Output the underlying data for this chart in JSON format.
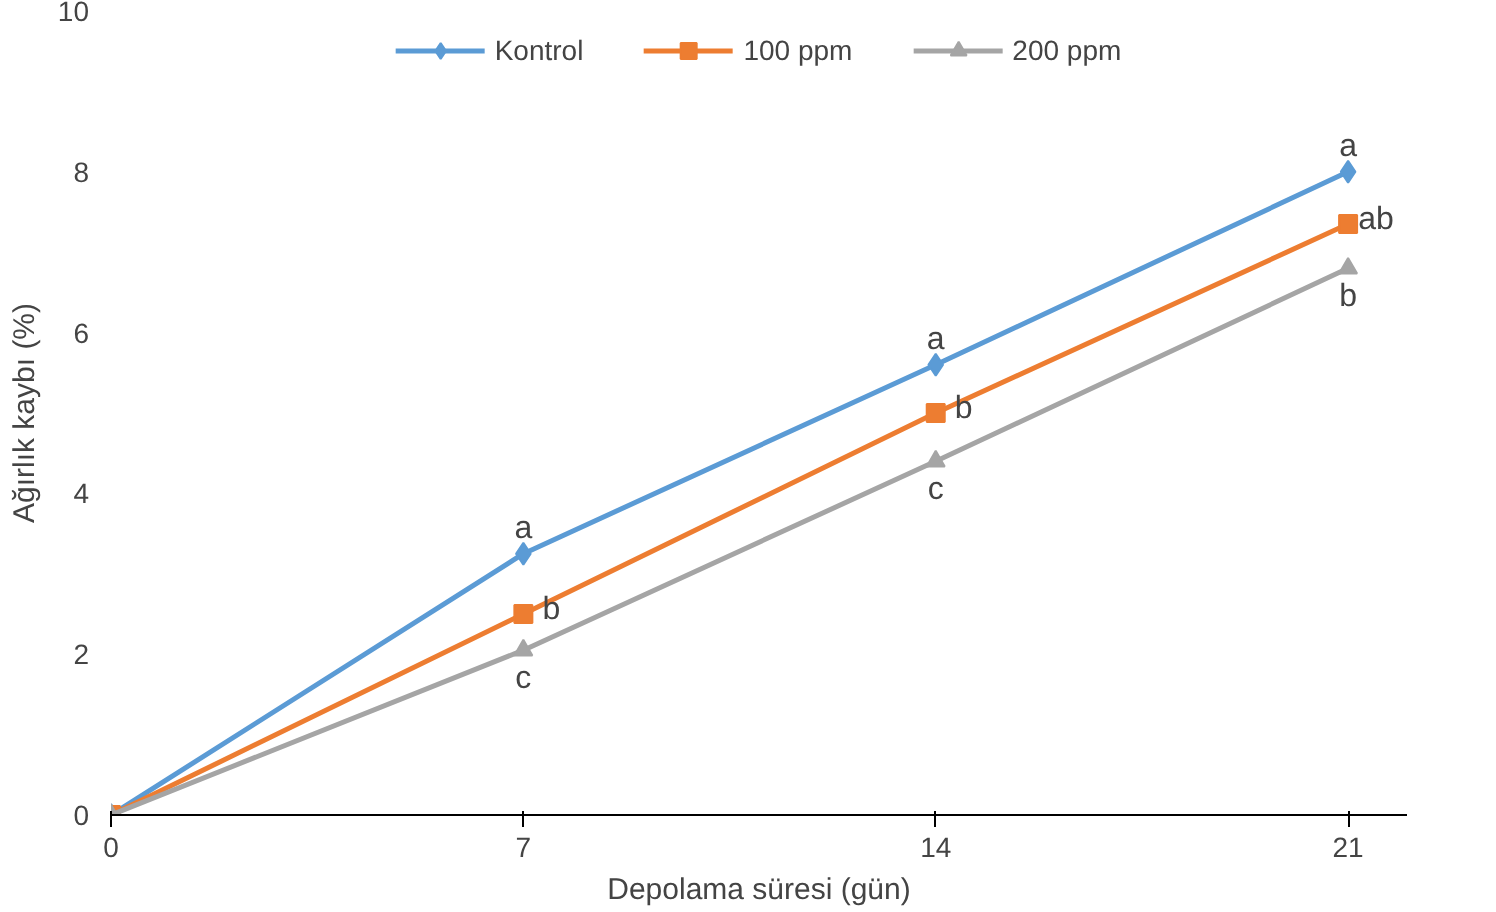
{
  "chart_data": {
    "type": "line",
    "xlabel": "Depolama süresi (gün)",
    "ylabel": "Ağırlık kaybı (%)",
    "x": [
      0,
      7,
      14,
      21
    ],
    "xlim": [
      0,
      22
    ],
    "xticks": [
      0,
      7,
      14,
      21
    ],
    "ylim": [
      0,
      10
    ],
    "yticks": [
      0,
      2,
      4,
      6,
      8,
      10
    ],
    "grid": false,
    "legend": "top",
    "line_style": "solid",
    "series": [
      {
        "name": "Kontrol",
        "color": "#5b9bd5",
        "marker": "diamond",
        "values": [
          0,
          3.25,
          5.6,
          8.0
        ]
      },
      {
        "name": "100 ppm",
        "color": "#ed7d31",
        "marker": "square",
        "values": [
          0,
          2.5,
          5.0,
          7.35
        ]
      },
      {
        "name": "200 ppm",
        "color": "#a5a5a5",
        "marker": "triangle",
        "values": [
          0,
          2.05,
          4.4,
          6.8
        ]
      }
    ],
    "annotations": [
      {
        "text": "a",
        "x": 7,
        "y": 3.25
      },
      {
        "text": "b",
        "x": 7,
        "y": 2.5
      },
      {
        "text": "c",
        "x": 7,
        "y": 2.05
      },
      {
        "text": "a",
        "x": 14,
        "y": 5.6
      },
      {
        "text": "b",
        "x": 14,
        "y": 5.0
      },
      {
        "text": "c",
        "x": 14,
        "y": 4.4
      },
      {
        "text": "a",
        "x": 21,
        "y": 8.0
      },
      {
        "text": "ab",
        "x": 21,
        "y": 7.35
      },
      {
        "text": "b",
        "x": 21,
        "y": 6.8
      }
    ]
  }
}
